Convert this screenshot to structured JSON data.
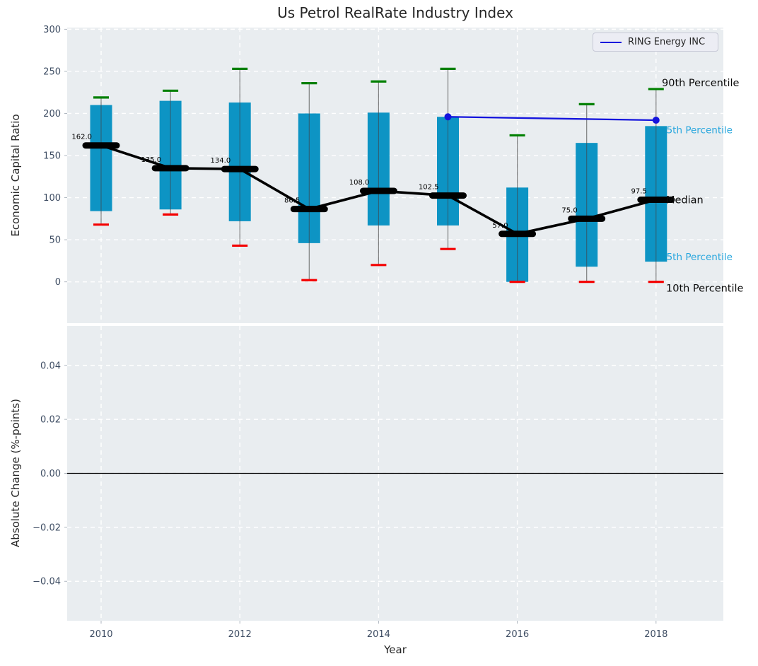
{
  "title": "Us Petrol RealRate Industry Index",
  "legend": {
    "label": "RING Energy INC"
  },
  "colors": {
    "panel_bg": "#e9edf0",
    "grid": "#ffffff",
    "box_fill": "#0d94c4",
    "whisker": "#5a5a5a",
    "cap_top": "#008000",
    "cap_bottom": "#f40000",
    "median": "#000000",
    "ring_line": "#1414dd",
    "tick_text": "#3e4d63",
    "label_text": "#262626",
    "cyan_label": "#29a7de"
  },
  "chart_data": [
    {
      "type": "boxplot",
      "title": "Us Petrol RealRate Industry Index",
      "ylabel": "Economic Capital Ratio",
      "xlabel": "Year",
      "ylim": [
        -49,
        302
      ],
      "grid": true,
      "legend_position": "upper right",
      "yticks": [
        300,
        250,
        200,
        150,
        100,
        50,
        0
      ],
      "xticks": [
        "2010",
        "2012",
        "2014",
        "2016",
        "2018"
      ],
      "categories": [
        2010,
        2011,
        2012,
        2013,
        2014,
        2015,
        2016,
        2017,
        2018
      ],
      "boxes": [
        {
          "year": 2010,
          "p10": 68,
          "p25": 84,
          "median": 162,
          "p75": 210,
          "p90": 219,
          "label": "162.0"
        },
        {
          "year": 2011,
          "p10": 80,
          "p25": 86,
          "median": 135,
          "p75": 215,
          "p90": 227,
          "label": "135.0"
        },
        {
          "year": 2012,
          "p10": 43,
          "p25": 72,
          "median": 134,
          "p75": 213,
          "p90": 253,
          "label": "134.0"
        },
        {
          "year": 2013,
          "p10": 2,
          "p25": 46,
          "median": 86.5,
          "p75": 200,
          "p90": 236,
          "label": "86.5"
        },
        {
          "year": 2014,
          "p10": 20,
          "p25": 67,
          "median": 108,
          "p75": 201,
          "p90": 238,
          "label": "108.0"
        },
        {
          "year": 2015,
          "p10": 39,
          "p25": 67,
          "median": 102.5,
          "p75": 196,
          "p90": 253,
          "label": "102.5"
        },
        {
          "year": 2016,
          "p10": 0,
          "p25": 0,
          "median": 57,
          "p75": 112,
          "p90": 174,
          "label": "57.0"
        },
        {
          "year": 2017,
          "p10": 0,
          "p25": 18,
          "median": 75,
          "p75": 165,
          "p90": 211,
          "label": "75.0"
        },
        {
          "year": 2018,
          "p10": 0,
          "p25": 24,
          "median": 97.5,
          "p75": 185,
          "p90": 229,
          "label": "97.5"
        }
      ],
      "series": [
        {
          "name": "RING Energy INC",
          "x": [
            2015,
            2018
          ],
          "y": [
            196,
            192
          ]
        }
      ],
      "annotations": [
        {
          "text": "90th Percentile",
          "anchor": "p90",
          "style": "black"
        },
        {
          "text": "75th Percentile",
          "anchor": "p75",
          "style": "cyan"
        },
        {
          "text": "Median",
          "anchor": "median",
          "style": "black"
        },
        {
          "text": "25th Percentile",
          "anchor": "p25",
          "style": "cyan"
        },
        {
          "text": "10th Percentile",
          "anchor": "p10",
          "style": "black"
        }
      ]
    },
    {
      "type": "line",
      "ylabel": "Absolute Change (%-points)",
      "ylim": [
        -0.0546,
        0.0546
      ],
      "grid": true,
      "yticks": [
        "0.04",
        "0.02",
        "0.00",
        "−0.02",
        "−0.04"
      ],
      "ytick_values": [
        0.04,
        0.02,
        0.0,
        -0.02,
        -0.04
      ],
      "zero_line": 0.0,
      "series": []
    }
  ]
}
